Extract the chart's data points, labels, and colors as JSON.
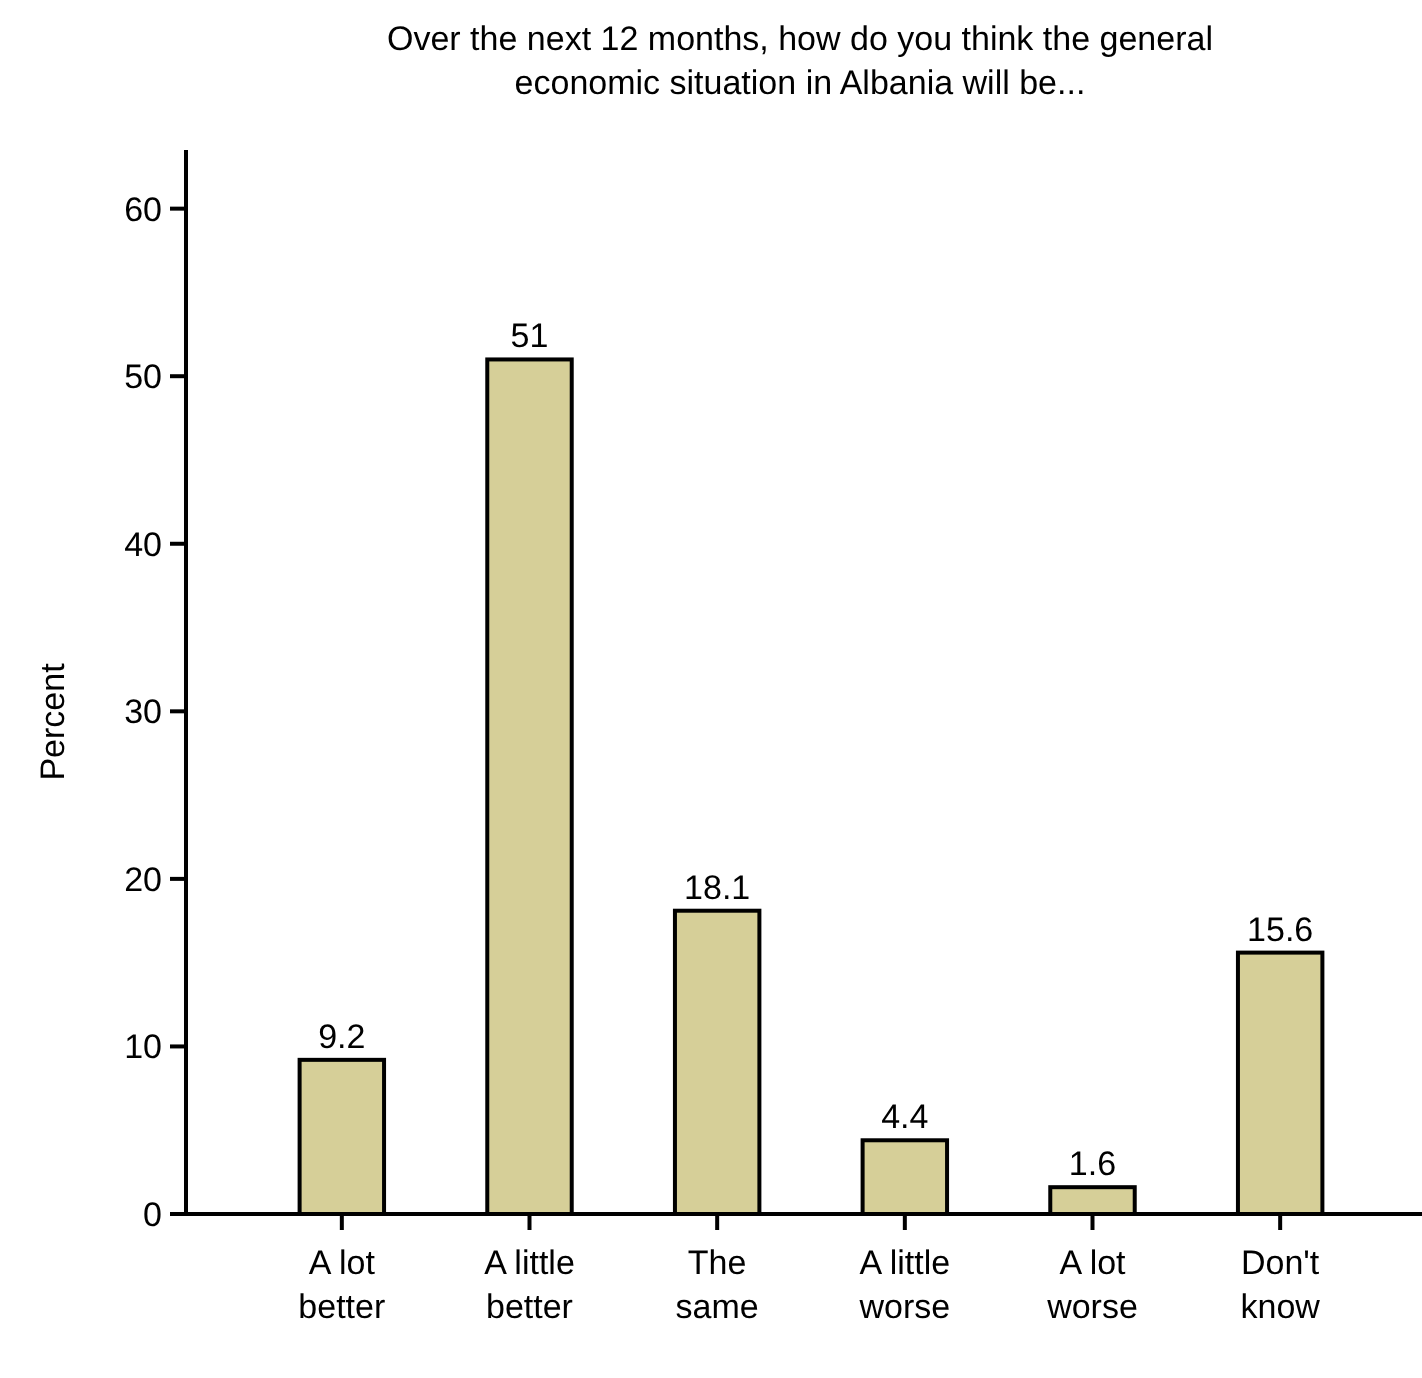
{
  "chart_data": {
    "type": "bar",
    "title": "Over the next 12 months, how do you think the general economic situation in Albania will be...",
    "ylabel": "Percent",
    "categories": [
      "A lot better",
      "A little better",
      "The same",
      "A little worse",
      "A lot worse",
      "Don't know"
    ],
    "values": [
      9.2,
      51,
      18.1,
      4.4,
      1.6,
      15.6
    ],
    "color": "#d6cf98",
    "data_labels": true,
    "ylim": [
      0,
      63.5
    ],
    "yticks": [
      0,
      10,
      20,
      30,
      40,
      50,
      60
    ],
    "grid": false
  }
}
